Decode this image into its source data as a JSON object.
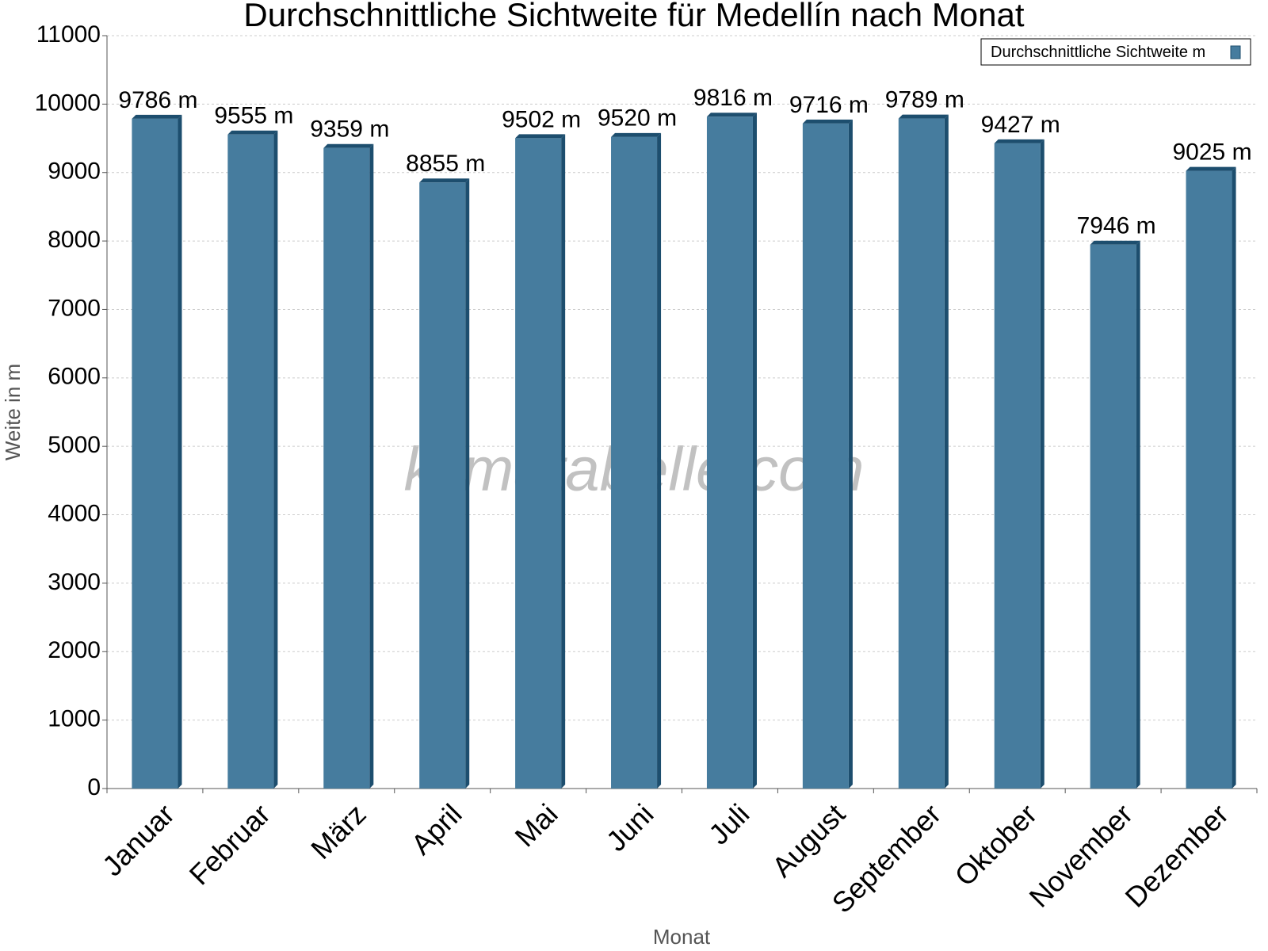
{
  "chart_data": {
    "type": "bar",
    "title": "Durchschnittliche Sichtweite für Medellín nach Monat",
    "x_label": "Monat",
    "y_label": "Weite in m",
    "watermark": "klimatabelle.com",
    "categories": [
      "Januar",
      "Februar",
      "März",
      "April",
      "Mai",
      "Juni",
      "Juli",
      "August",
      "September",
      "Oktober",
      "November",
      "Dezember"
    ],
    "series": [
      {
        "name": "Durchschnittliche Sichtweite m",
        "color": "#467c9e",
        "values": [
          9786,
          9555,
          9359,
          8855,
          9502,
          9520,
          9816,
          9716,
          9789,
          9427,
          7946,
          9025
        ],
        "value_labels": [
          "9786 m",
          "9555 m",
          "9359 m",
          "8855 m",
          "9502 m",
          "9520 m",
          "9816 m",
          "9716 m",
          "9789 m",
          "9427 m",
          "7946 m",
          "9025 m"
        ]
      }
    ],
    "ylim": [
      0,
      11000
    ],
    "yticks": [
      0,
      1000,
      2000,
      3000,
      4000,
      5000,
      6000,
      7000,
      8000,
      9000,
      10000,
      11000
    ],
    "grid": true,
    "legend": "top-right"
  }
}
